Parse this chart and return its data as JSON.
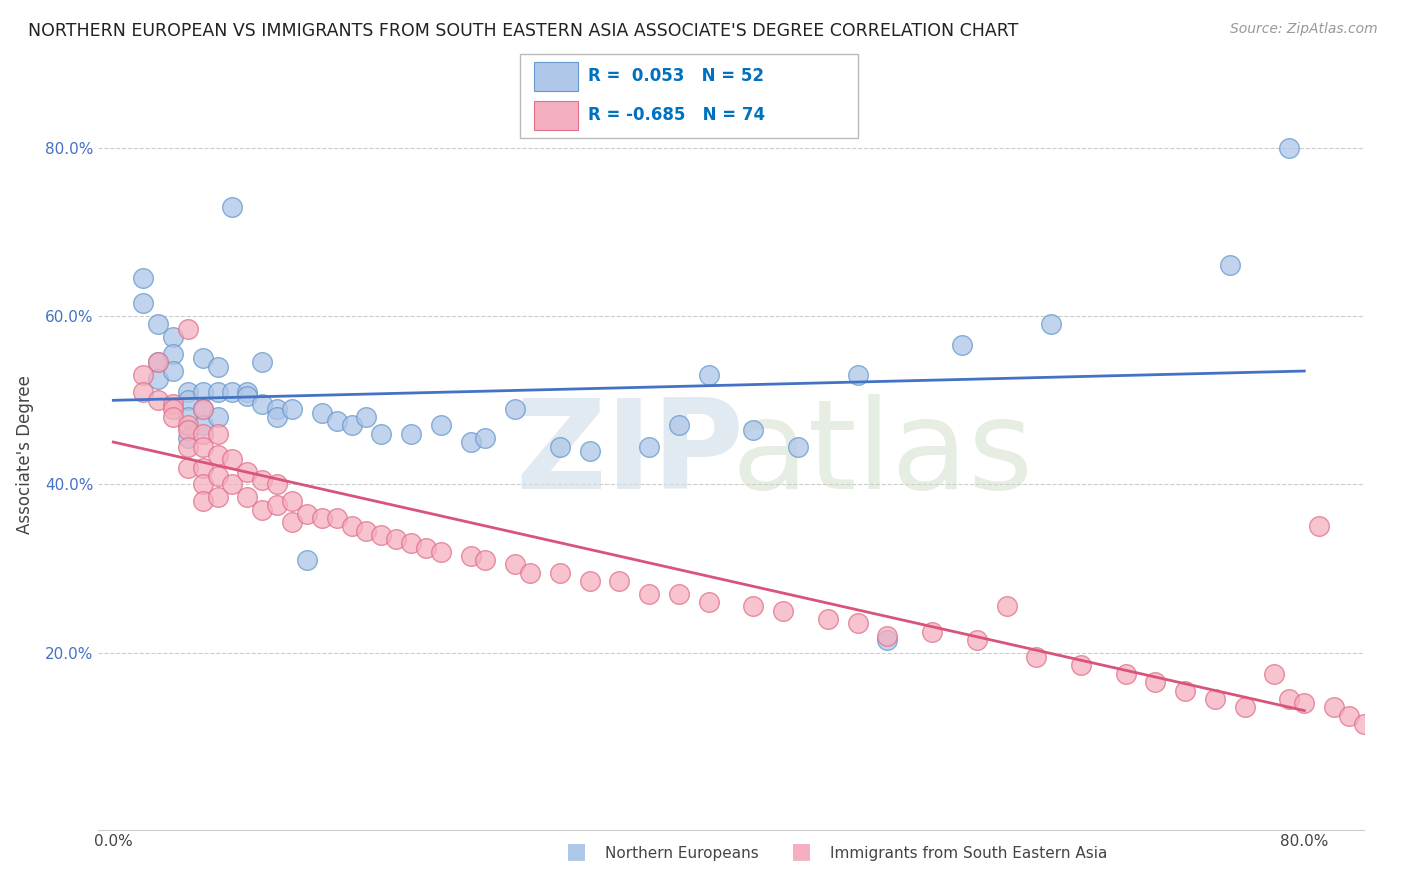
{
  "title": "NORTHERN EUROPEAN VS IMMIGRANTS FROM SOUTH EASTERN ASIA ASSOCIATE'S DEGREE CORRELATION CHART",
  "source": "Source: ZipAtlas.com",
  "ylabel": "Associate's Degree",
  "blue_R": 0.053,
  "blue_N": 52,
  "pink_R": -0.685,
  "pink_N": 74,
  "blue_color": "#aec6e8",
  "blue_edge": "#6699cc",
  "pink_color": "#f4afc0",
  "pink_edge": "#e0708a",
  "blue_line_color": "#4472C4",
  "pink_line_color": "#d9547a",
  "xlim": [
    -0.01,
    0.84
  ],
  "ylim": [
    -0.01,
    0.88
  ],
  "x_ticks": [
    0.0,
    0.8
  ],
  "x_tick_labels": [
    "0.0%",
    "80.0%"
  ],
  "y_ticks": [
    0.2,
    0.4,
    0.6,
    0.8
  ],
  "y_tick_labels": [
    "20.0%",
    "40.0%",
    "60.0%",
    "80.0%"
  ],
  "blue_x": [
    0.02,
    0.02,
    0.03,
    0.03,
    0.03,
    0.04,
    0.04,
    0.04,
    0.05,
    0.05,
    0.05,
    0.05,
    0.06,
    0.06,
    0.06,
    0.06,
    0.07,
    0.07,
    0.07,
    0.08,
    0.08,
    0.09,
    0.09,
    0.1,
    0.1,
    0.11,
    0.11,
    0.12,
    0.13,
    0.14,
    0.15,
    0.16,
    0.17,
    0.18,
    0.2,
    0.22,
    0.24,
    0.25,
    0.27,
    0.3,
    0.32,
    0.36,
    0.38,
    0.4,
    0.43,
    0.46,
    0.5,
    0.52,
    0.57,
    0.63,
    0.75,
    0.79
  ],
  "blue_y": [
    0.645,
    0.615,
    0.59,
    0.545,
    0.525,
    0.575,
    0.555,
    0.535,
    0.51,
    0.5,
    0.48,
    0.455,
    0.55,
    0.51,
    0.49,
    0.47,
    0.54,
    0.51,
    0.48,
    0.51,
    0.73,
    0.51,
    0.505,
    0.545,
    0.495,
    0.49,
    0.48,
    0.49,
    0.31,
    0.485,
    0.475,
    0.47,
    0.48,
    0.46,
    0.46,
    0.47,
    0.45,
    0.455,
    0.49,
    0.445,
    0.44,
    0.445,
    0.47,
    0.53,
    0.465,
    0.445,
    0.53,
    0.215,
    0.565,
    0.59,
    0.66,
    0.8
  ],
  "pink_x": [
    0.02,
    0.02,
    0.03,
    0.03,
    0.04,
    0.04,
    0.04,
    0.05,
    0.05,
    0.05,
    0.05,
    0.05,
    0.06,
    0.06,
    0.06,
    0.06,
    0.06,
    0.06,
    0.07,
    0.07,
    0.07,
    0.07,
    0.08,
    0.08,
    0.09,
    0.09,
    0.1,
    0.1,
    0.11,
    0.11,
    0.12,
    0.12,
    0.13,
    0.14,
    0.15,
    0.16,
    0.17,
    0.18,
    0.19,
    0.2,
    0.21,
    0.22,
    0.24,
    0.25,
    0.27,
    0.28,
    0.3,
    0.32,
    0.34,
    0.36,
    0.38,
    0.4,
    0.43,
    0.45,
    0.48,
    0.5,
    0.52,
    0.55,
    0.58,
    0.6,
    0.62,
    0.65,
    0.68,
    0.7,
    0.72,
    0.74,
    0.76,
    0.78,
    0.79,
    0.8,
    0.81,
    0.82,
    0.83,
    0.84
  ],
  "pink_y": [
    0.53,
    0.51,
    0.545,
    0.5,
    0.495,
    0.49,
    0.48,
    0.585,
    0.47,
    0.465,
    0.445,
    0.42,
    0.49,
    0.46,
    0.445,
    0.42,
    0.4,
    0.38,
    0.46,
    0.435,
    0.41,
    0.385,
    0.43,
    0.4,
    0.415,
    0.385,
    0.405,
    0.37,
    0.4,
    0.375,
    0.38,
    0.355,
    0.365,
    0.36,
    0.36,
    0.35,
    0.345,
    0.34,
    0.335,
    0.33,
    0.325,
    0.32,
    0.315,
    0.31,
    0.305,
    0.295,
    0.295,
    0.285,
    0.285,
    0.27,
    0.27,
    0.26,
    0.255,
    0.25,
    0.24,
    0.235,
    0.22,
    0.225,
    0.215,
    0.255,
    0.195,
    0.185,
    0.175,
    0.165,
    0.155,
    0.145,
    0.135,
    0.175,
    0.145,
    0.14,
    0.35,
    0.135,
    0.125,
    0.115
  ]
}
